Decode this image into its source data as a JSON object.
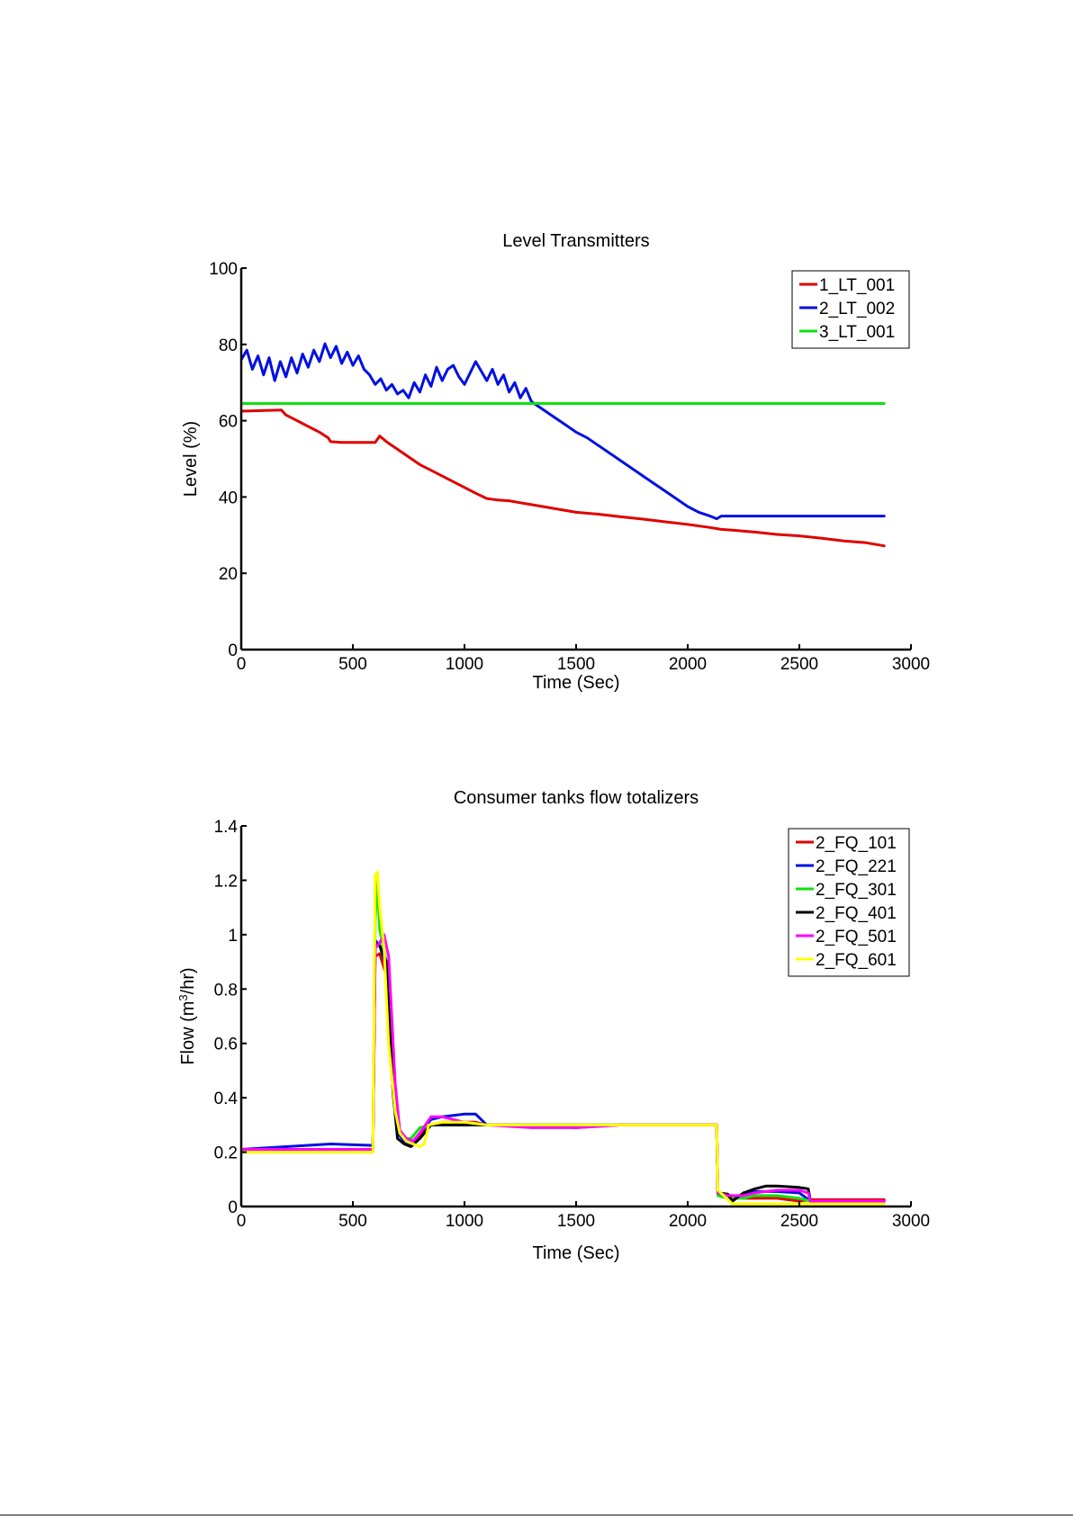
{
  "chart_data": [
    {
      "type": "line",
      "title": "Level Transmitters",
      "xlabel": "Time (Sec)",
      "ylabel": "Level (%)",
      "xlim": [
        0,
        3000
      ],
      "ylim": [
        0,
        100
      ],
      "xticks": [
        0,
        500,
        1000,
        1500,
        2000,
        2500,
        3000
      ],
      "yticks": [
        0,
        20,
        40,
        60,
        80,
        100
      ],
      "xtick_labels": [
        "0",
        "500",
        "1000",
        "1500",
        "2000",
        "2500",
        "3000"
      ],
      "ytick_labels": [
        "0",
        "20",
        "40",
        "60",
        "80",
        "100"
      ],
      "legend_position": "top-right",
      "series": [
        {
          "name": "1_LT_001",
          "color": "#e00000",
          "x": [
            0,
            180,
            200,
            250,
            300,
            350,
            390,
            400,
            450,
            500,
            550,
            600,
            620,
            650,
            700,
            750,
            800,
            850,
            900,
            950,
            1000,
            1050,
            1100,
            1150,
            1200,
            1250,
            1300,
            1350,
            1400,
            1500,
            1600,
            1700,
            1800,
            1900,
            2000,
            2100,
            2150,
            2200,
            2300,
            2400,
            2500,
            2600,
            2700,
            2800,
            2880
          ],
          "y": [
            62.5,
            62.8,
            61.5,
            60,
            58.5,
            57,
            55.5,
            54.5,
            54.3,
            54.3,
            54.3,
            54.3,
            56,
            54.5,
            52.5,
            50.5,
            48.5,
            47,
            45.5,
            44,
            42.5,
            41,
            39.6,
            39.2,
            39,
            38.5,
            38,
            37.5,
            37,
            36,
            35.5,
            34.8,
            34.2,
            33.5,
            32.8,
            32,
            31.5,
            31.3,
            30.8,
            30.2,
            29.8,
            29.2,
            28.5,
            28,
            27.2
          ]
        },
        {
          "name": "2_LT_002",
          "color": "#0010e0",
          "x": [
            0,
            25,
            50,
            75,
            100,
            125,
            150,
            175,
            200,
            225,
            250,
            275,
            300,
            325,
            350,
            375,
            400,
            425,
            450,
            475,
            500,
            525,
            550,
            575,
            600,
            625,
            650,
            675,
            700,
            725,
            750,
            775,
            800,
            825,
            850,
            875,
            900,
            925,
            950,
            975,
            1000,
            1025,
            1050,
            1075,
            1100,
            1125,
            1150,
            1175,
            1200,
            1225,
            1250,
            1275,
            1300,
            1350,
            1400,
            1450,
            1500,
            1550,
            1600,
            1650,
            1700,
            1750,
            1800,
            1850,
            1900,
            1950,
            2000,
            2050,
            2100,
            2130,
            2150,
            2200,
            2300,
            2400,
            2500,
            2600,
            2700,
            2800,
            2880
          ],
          "y": [
            76,
            78.5,
            73.5,
            77,
            72,
            76.5,
            70.5,
            75.5,
            71.5,
            76.5,
            72.5,
            77.5,
            74,
            78.5,
            75.5,
            80.2,
            76.5,
            79.5,
            75,
            78,
            74.5,
            77,
            73.5,
            72,
            69.5,
            71,
            68,
            69.5,
            67,
            68,
            66,
            70,
            67.5,
            72,
            69,
            74,
            70.5,
            73.5,
            74.5,
            71.5,
            69.5,
            72.5,
            75.5,
            73,
            70.5,
            73.5,
            69.5,
            72,
            67.5,
            70,
            66,
            68.5,
            65,
            63,
            61,
            59,
            57,
            55.5,
            53.5,
            51.5,
            49.5,
            47.5,
            45.5,
            43.5,
            41.5,
            39.5,
            37.5,
            36,
            35,
            34.3,
            35,
            35,
            35,
            35,
            35,
            35,
            35,
            35,
            35
          ]
        },
        {
          "name": "3_LT_001",
          "color": "#10e010",
          "x": [
            0,
            500,
            1000,
            1500,
            2000,
            2500,
            2880
          ],
          "y": [
            64.5,
            64.5,
            64.5,
            64.5,
            64.5,
            64.5,
            64.5
          ]
        }
      ]
    },
    {
      "type": "line",
      "title": "Consumer tanks flow totalizers",
      "xlabel": "Time (Sec)",
      "ylabel": "Flow (m³/hr)",
      "ylabel_parts": [
        "Flow (m",
        "3",
        "/hr)"
      ],
      "xlim": [
        0,
        3000
      ],
      "ylim": [
        0,
        1.4
      ],
      "xticks": [
        0,
        500,
        1000,
        1500,
        2000,
        2500,
        3000
      ],
      "yticks": [
        0,
        0.2,
        0.4,
        0.6,
        0.8,
        1,
        1.2,
        1.4
      ],
      "xtick_labels": [
        "0",
        "500",
        "1000",
        "1500",
        "2000",
        "2500",
        "3000"
      ],
      "ytick_labels": [
        "0",
        "0.2",
        "0.4",
        "0.6",
        "0.8",
        "1",
        "1.2",
        "1.4"
      ],
      "legend_position": "top-right",
      "series": [
        {
          "name": "2_FQ_101",
          "color": "#e00000",
          "x": [
            0,
            580,
            590,
            600,
            620,
            650,
            680,
            700,
            730,
            760,
            800,
            850,
            900,
            1000,
            1050,
            1100,
            1300,
            1500,
            1700,
            1900,
            2100,
            2130,
            2135,
            2180,
            2200,
            2250,
            2300,
            2400,
            2500,
            2550,
            2600,
            2880
          ],
          "y": [
            0.21,
            0.21,
            0.21,
            0.92,
            0.93,
            0.85,
            0.45,
            0.28,
            0.24,
            0.23,
            0.26,
            0.3,
            0.31,
            0.31,
            0.31,
            0.3,
            0.3,
            0.29,
            0.3,
            0.3,
            0.3,
            0.3,
            0.05,
            0.04,
            0.04,
            0.03,
            0.03,
            0.03,
            0.02,
            0.025,
            0.025,
            0.025
          ]
        },
        {
          "name": "2_FQ_221",
          "color": "#0010e0",
          "x": [
            0,
            200,
            400,
            580,
            590,
            600,
            620,
            650,
            680,
            700,
            730,
            760,
            800,
            850,
            900,
            1000,
            1050,
            1100,
            1300,
            1500,
            1700,
            1900,
            2100,
            2130,
            2135,
            2180,
            2200,
            2250,
            2300,
            2400,
            2500,
            2550,
            2600,
            2880
          ],
          "y": [
            0.21,
            0.22,
            0.23,
            0.225,
            0.225,
            0.98,
            0.96,
            0.88,
            0.42,
            0.27,
            0.24,
            0.23,
            0.27,
            0.32,
            0.33,
            0.34,
            0.34,
            0.3,
            0.3,
            0.3,
            0.3,
            0.3,
            0.3,
            0.3,
            0.05,
            0.045,
            0.02,
            0.05,
            0.055,
            0.055,
            0.05,
            0.02,
            0.02,
            0.02
          ]
        },
        {
          "name": "2_FQ_301",
          "color": "#10e010",
          "x": [
            0,
            580,
            590,
            600,
            610,
            620,
            650,
            680,
            700,
            730,
            760,
            800,
            850,
            900,
            1000,
            1100,
            1300,
            1500,
            1700,
            1900,
            2100,
            2130,
            2135,
            2180,
            2200,
            2250,
            2300,
            2400,
            2500,
            2550,
            2600,
            2880
          ],
          "y": [
            0.2,
            0.2,
            0.2,
            1.05,
            1.2,
            1.02,
            0.9,
            0.5,
            0.3,
            0.25,
            0.25,
            0.29,
            0.3,
            0.3,
            0.3,
            0.3,
            0.3,
            0.3,
            0.3,
            0.3,
            0.3,
            0.3,
            0.04,
            0.03,
            0.03,
            0.03,
            0.04,
            0.04,
            0.03,
            0.02,
            0.02,
            0.02
          ]
        },
        {
          "name": "2_FQ_401",
          "color": "#000000",
          "x": [
            0,
            580,
            590,
            600,
            620,
            650,
            680,
            700,
            730,
            760,
            800,
            850,
            900,
            1000,
            1100,
            1300,
            1500,
            1700,
            1900,
            2100,
            2130,
            2135,
            2180,
            2200,
            2250,
            2300,
            2350,
            2400,
            2500,
            2540,
            2550,
            2600,
            2880
          ],
          "y": [
            0.21,
            0.21,
            0.21,
            0.96,
            0.96,
            0.9,
            0.42,
            0.25,
            0.23,
            0.22,
            0.25,
            0.3,
            0.3,
            0.3,
            0.3,
            0.3,
            0.3,
            0.3,
            0.3,
            0.3,
            0.3,
            0.05,
            0.045,
            0.02,
            0.05,
            0.065,
            0.075,
            0.075,
            0.07,
            0.065,
            0.02,
            0.02,
            0.02
          ]
        },
        {
          "name": "2_FQ_501",
          "color": "#ff00ff",
          "x": [
            0,
            580,
            590,
            600,
            620,
            640,
            660,
            690,
            710,
            740,
            770,
            800,
            850,
            900,
            1000,
            1100,
            1300,
            1500,
            1700,
            1900,
            2100,
            2130,
            2135,
            2180,
            2200,
            2250,
            2300,
            2400,
            2500,
            2540,
            2550,
            2600,
            2880
          ],
          "y": [
            0.21,
            0.21,
            0.21,
            0.95,
            0.97,
            1.0,
            0.92,
            0.45,
            0.28,
            0.25,
            0.24,
            0.27,
            0.33,
            0.33,
            0.31,
            0.3,
            0.29,
            0.29,
            0.3,
            0.3,
            0.3,
            0.3,
            0.05,
            0.04,
            0.04,
            0.04,
            0.05,
            0.06,
            0.06,
            0.05,
            0.02,
            0.02,
            0.02
          ]
        },
        {
          "name": "2_FQ_601",
          "color": "#ffff00",
          "x": [
            0,
            580,
            590,
            600,
            610,
            620,
            640,
            660,
            690,
            710,
            740,
            770,
            800,
            820,
            840,
            900,
            1000,
            1100,
            1300,
            1500,
            1700,
            1900,
            2100,
            2130,
            2135,
            2200,
            2300,
            2400,
            2500,
            2600,
            2880
          ],
          "y": [
            0.2,
            0.2,
            0.2,
            1.22,
            1.23,
            1.1,
            0.95,
            0.6,
            0.35,
            0.27,
            0.24,
            0.23,
            0.22,
            0.23,
            0.3,
            0.31,
            0.31,
            0.3,
            0.3,
            0.3,
            0.3,
            0.3,
            0.3,
            0.3,
            0.06,
            0.01,
            0.01,
            0.01,
            0.01,
            0.01,
            0.01
          ]
        }
      ]
    }
  ]
}
